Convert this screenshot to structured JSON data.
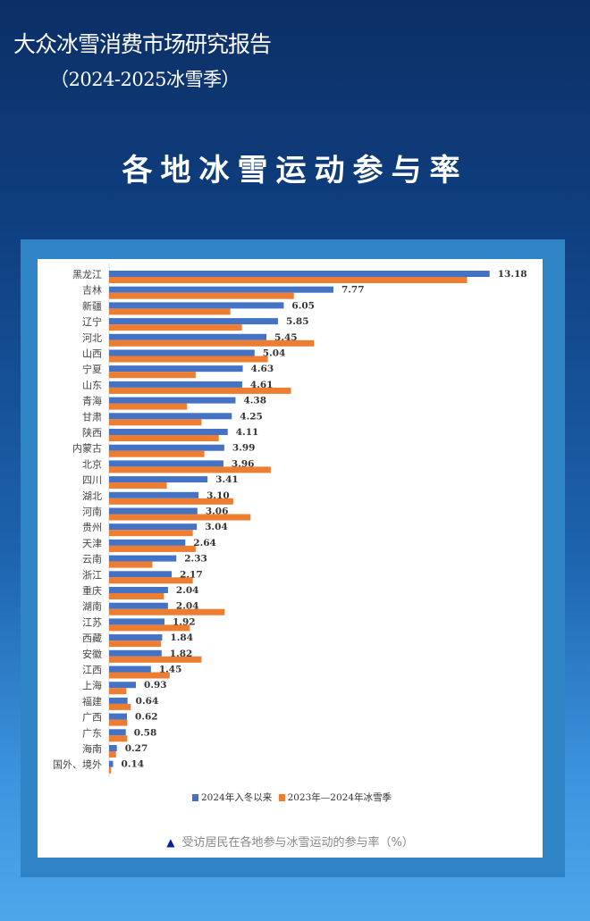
{
  "header": {
    "report_title": "大众冰雪消费市场研究报告",
    "report_subtitle": "（2024-2025冰雪季）",
    "section_title": "各地冰雪运动参与率"
  },
  "colors": {
    "series1": "#4472c4",
    "series2": "#ed7d31",
    "note_triangle": "#0a1f9c"
  },
  "chart_data": {
    "type": "bar",
    "orientation": "horizontal",
    "title": "各地冰雪运动参与率",
    "caption": "受访居民在各地参与冰雪运动的参与率（%）",
    "caption_icon": "▲",
    "legend_placement": "bottom",
    "xlim": [
      0,
      14
    ],
    "categories": [
      "黑龙江",
      "吉林",
      "新疆",
      "辽宁",
      "河北",
      "山西",
      "宁夏",
      "山东",
      "青海",
      "甘肃",
      "陕西",
      "内蒙古",
      "北京",
      "四川",
      "湖北",
      "河南",
      "贵州",
      "天津",
      "云南",
      "浙江",
      "重庆",
      "湖南",
      "江苏",
      "西藏",
      "安徽",
      "江西",
      "上海",
      "福建",
      "广西",
      "广东",
      "海南",
      "国外、境外"
    ],
    "series": [
      {
        "name": "2024年入冬以来",
        "values": [
          13.18,
          7.77,
          6.05,
          5.85,
          5.45,
          5.04,
          4.63,
          4.61,
          4.38,
          4.25,
          4.11,
          3.99,
          3.96,
          3.41,
          3.1,
          3.06,
          3.04,
          2.64,
          2.33,
          2.17,
          2.04,
          2.04,
          1.92,
          1.84,
          1.82,
          1.45,
          0.93,
          0.64,
          0.62,
          0.58,
          0.27,
          0.14
        ],
        "labels": [
          "13.18",
          "7.77",
          "6.05",
          "5.85",
          "5.45",
          "5.04",
          "4.63",
          "4.61",
          "4.38",
          "4.25",
          "4.11",
          "3.99",
          "3.96",
          "3.41",
          "3.10",
          "3.06",
          "3.04",
          "2.64",
          "2.33",
          "2.17",
          "2.04",
          "2.04",
          "1.92",
          "1.84",
          "1.82",
          "1.45",
          "0.93",
          "0.64",
          "0.62",
          "0.58",
          "0.27",
          "0.14"
        ]
      },
      {
        "name": "2023年—2024年冰雪季",
        "values": [
          12.4,
          6.4,
          4.2,
          4.6,
          7.1,
          5.5,
          3.0,
          6.3,
          2.7,
          3.2,
          3.8,
          3.3,
          5.6,
          2.0,
          4.3,
          4.9,
          2.9,
          3.0,
          1.5,
          2.9,
          1.9,
          4.0,
          2.8,
          1.8,
          3.2,
          2.1,
          0.6,
          0.75,
          0.63,
          0.63,
          0.24,
          0.07
        ]
      }
    ]
  }
}
